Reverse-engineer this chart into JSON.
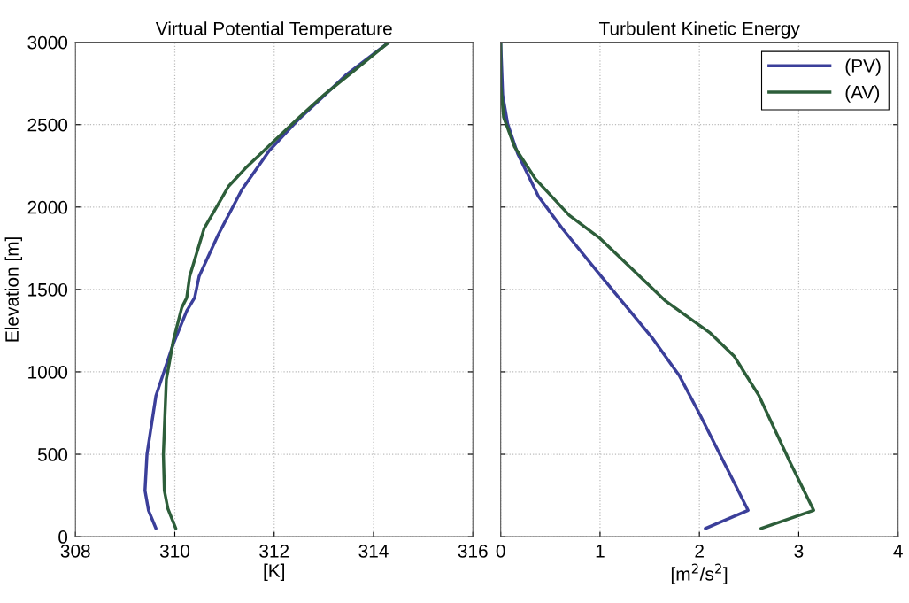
{
  "chart_data": [
    {
      "type": "line",
      "title": "Virtual Potential Temperature",
      "xlabel": "[K]",
      "ylabel": "Elevation [m]",
      "xlim": [
        308,
        316
      ],
      "xticks": [
        308,
        310,
        312,
        314,
        316
      ],
      "ylim": [
        0,
        3000
      ],
      "yticks": [
        0,
        500,
        1000,
        1500,
        2000,
        2500,
        3000
      ],
      "grid": true,
      "legend": false,
      "series": [
        {
          "color": "#3b3f9a",
          "x": [
            309.62,
            309.47,
            309.4,
            309.44,
            309.62,
            309.97,
            310.24,
            310.4,
            310.49,
            310.87,
            311.35,
            311.91,
            312.47,
            312.95,
            313.44,
            314.31
          ],
          "values": [
            50,
            160,
            280,
            500,
            855,
            1170,
            1370,
            1450,
            1580,
            1830,
            2105,
            2345,
            2525,
            2660,
            2800,
            3000
          ]
        },
        {
          "color": "#2d5e3a",
          "x": [
            310.02,
            309.86,
            309.79,
            309.77,
            309.83,
            309.97,
            310.14,
            310.24,
            310.3,
            310.59,
            311.08,
            311.42,
            311.91,
            312.47,
            313.02,
            313.58,
            314.31
          ],
          "values": [
            50,
            170,
            280,
            500,
            955,
            1190,
            1390,
            1450,
            1580,
            1870,
            2125,
            2235,
            2375,
            2535,
            2685,
            2820,
            3000
          ]
        }
      ]
    },
    {
      "type": "line",
      "title": "Turbulent Kinetic Energy",
      "xlabel": "[m$^{2}$/s$^{2}$]",
      "xlim": [
        0,
        4
      ],
      "xticks": [
        0,
        1,
        2,
        3,
        4
      ],
      "ylim": [
        0,
        3000
      ],
      "yticks": [
        0,
        500,
        1000,
        1500,
        2000,
        2500,
        3000
      ],
      "tick_labels": "x",
      "grid": true,
      "legend": "top right",
      "series": [
        {
          "name": "(PV)",
          "color": "#3b3f9a",
          "x": [
            2.06,
            2.49,
            2.01,
            1.8,
            1.52,
            0.97,
            0.62,
            0.38,
            0.17,
            0.07,
            0.02,
            0
          ],
          "values": [
            50,
            160,
            735,
            975,
            1210,
            1610,
            1870,
            2065,
            2325,
            2505,
            2680,
            3000
          ]
        },
        {
          "name": "(AV)",
          "color": "#2d5e3a",
          "x": [
            2.62,
            3.15,
            2.91,
            2.6,
            2.35,
            2.11,
            1.66,
            1.0,
            0.69,
            0.35,
            0.14,
            0.03,
            0,
            0
          ],
          "values": [
            50,
            160,
            455,
            855,
            1095,
            1235,
            1430,
            1810,
            1950,
            2170,
            2365,
            2545,
            2740,
            3000
          ]
        }
      ]
    }
  ]
}
